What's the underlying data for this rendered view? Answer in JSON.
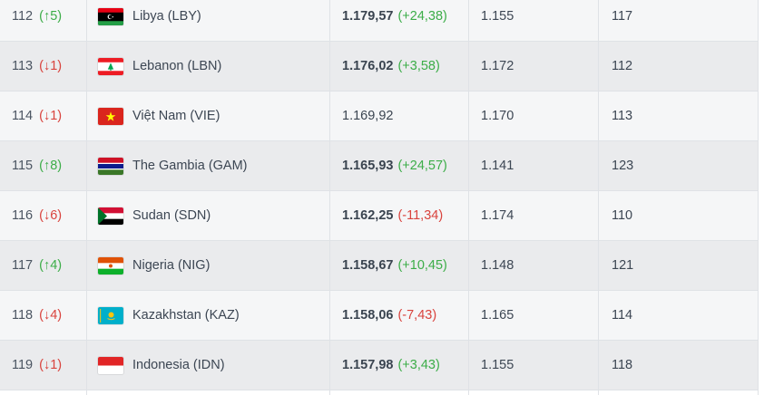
{
  "rows": [
    {
      "rank": "112",
      "move": "(↑5)",
      "dir": "up",
      "team": "Libya (LBY)",
      "flag": "libya-flag-icon",
      "points": "1.179,57",
      "change": "(+24,38)",
      "change_dir": "up",
      "prev": "1.155",
      "prev_rank": "117"
    },
    {
      "rank": "113",
      "move": "(↓1)",
      "dir": "down",
      "team": "Lebanon (LBN)",
      "flag": "lebanon-flag-icon",
      "points": "1.176,02",
      "change": "(+3,58)",
      "change_dir": "up",
      "prev": "1.172",
      "prev_rank": "112"
    },
    {
      "rank": "114",
      "move": "(↓1)",
      "dir": "down",
      "team": "Việt Nam (VIE)",
      "flag": "vietnam-flag-icon",
      "points": "1.169,92",
      "change": "",
      "change_dir": "",
      "prev": "1.170",
      "prev_rank": "113"
    },
    {
      "rank": "115",
      "move": "(↑8)",
      "dir": "up",
      "team": "The Gambia (GAM)",
      "flag": "gambia-flag-icon",
      "points": "1.165,93",
      "change": "(+24,57)",
      "change_dir": "up",
      "prev": "1.141",
      "prev_rank": "123"
    },
    {
      "rank": "116",
      "move": "(↓6)",
      "dir": "down",
      "team": "Sudan (SDN)",
      "flag": "sudan-flag-icon",
      "points": "1.162,25",
      "change": "(-11,34)",
      "change_dir": "down",
      "prev": "1.174",
      "prev_rank": "110"
    },
    {
      "rank": "117",
      "move": "(↑4)",
      "dir": "up",
      "team": "Nigeria (NIG)",
      "flag": "niger-flag-icon",
      "points": "1.158,67",
      "change": "(+10,45)",
      "change_dir": "up",
      "prev": "1.148",
      "prev_rank": "121"
    },
    {
      "rank": "118",
      "move": "(↓4)",
      "dir": "down",
      "team": "Kazakhstan (KAZ)",
      "flag": "kazakhstan-flag-icon",
      "points": "1.158,06",
      "change": "(-7,43)",
      "change_dir": "down",
      "prev": "1.165",
      "prev_rank": "114"
    },
    {
      "rank": "119",
      "move": "(↓1)",
      "dir": "down",
      "team": "Indonesia (IDN)",
      "flag": "indonesia-flag-icon",
      "points": "1.157,98",
      "change": "(+3,43)",
      "change_dir": "up",
      "prev": "1.155",
      "prev_rank": "118"
    }
  ],
  "colors": {
    "up": "#3cad48",
    "down": "#d9433d",
    "row_odd": "#f5f6f7",
    "row_even": "#eaebed"
  }
}
